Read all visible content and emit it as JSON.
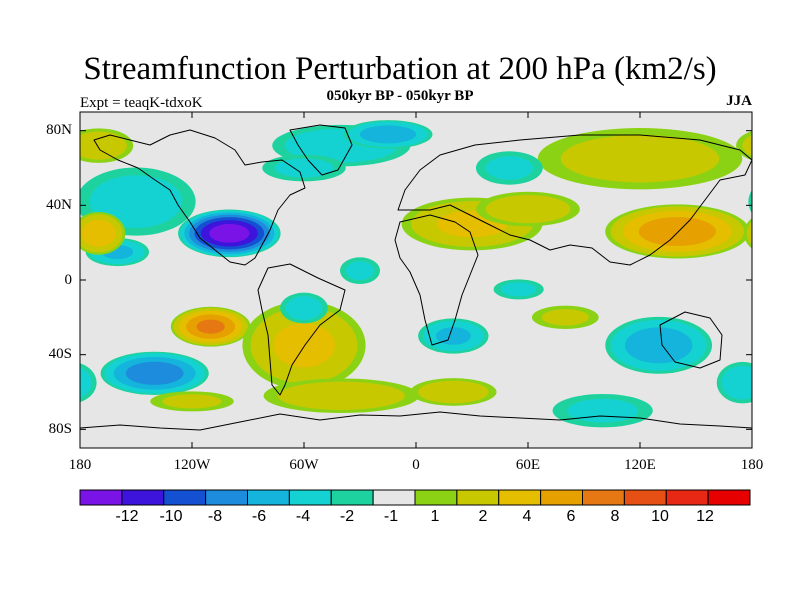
{
  "title": "Streamfunction Perturbation at 200 hPa (km2/s)",
  "subtitle": "050kyr BP - 050kyr BP",
  "left_label": "Expt = teaqK-tdxoK",
  "right_label": "JJA",
  "lat_labels": [
    "80N",
    "40N",
    "0",
    "40S",
    "80S"
  ],
  "lon_labels": [
    "180",
    "120W",
    "60W",
    "0",
    "60E",
    "120E",
    "180"
  ],
  "colorbar": {
    "colors": [
      "#7a14e6",
      "#3c14dc",
      "#1450d2",
      "#1e8cdc",
      "#14b4dc",
      "#14d2d2",
      "#1ed2a0",
      "#e6e6e6",
      "#8cd214",
      "#c8c800",
      "#e6be00",
      "#e6a000",
      "#e67814",
      "#e65014",
      "#e62814",
      "#e60000"
    ],
    "labels": [
      "-12",
      "-10",
      "-8",
      "-6",
      "-4",
      "-2",
      "-1",
      "1",
      "2",
      "4",
      "6",
      "8",
      "10",
      "12"
    ]
  },
  "fields": [
    {
      "lon": -100,
      "lat": 25,
      "rx": 28,
      "ry": 13,
      "v": -13
    },
    {
      "lon": -140,
      "lat": -50,
      "rx": 30,
      "ry": 12,
      "v": -7
    },
    {
      "lon": -160,
      "lat": 15,
      "rx": 18,
      "ry": 8,
      "v": -4
    },
    {
      "lon": -150,
      "lat": 42,
      "rx": 35,
      "ry": 20,
      "v": -2.5
    },
    {
      "lon": -40,
      "lat": 72,
      "rx": 40,
      "ry": 12,
      "v": -3
    },
    {
      "lon": -15,
      "lat": 78,
      "rx": 25,
      "ry": 8,
      "v": -5
    },
    {
      "lon": -110,
      "lat": -25,
      "rx": 22,
      "ry": 11,
      "v": 8
    },
    {
      "lon": -60,
      "lat": -35,
      "rx": 35,
      "ry": 25,
      "v": 4
    },
    {
      "lon": -40,
      "lat": -62,
      "rx": 45,
      "ry": 10,
      "v": 3
    },
    {
      "lon": 20,
      "lat": -60,
      "rx": 25,
      "ry": 8,
      "v": 3
    },
    {
      "lon": 30,
      "lat": 30,
      "rx": 40,
      "ry": 15,
      "v": 4
    },
    {
      "lon": 60,
      "lat": 38,
      "rx": 30,
      "ry": 10,
      "v": 3
    },
    {
      "lon": 140,
      "lat": 26,
      "rx": 40,
      "ry": 15,
      "v": 7
    },
    {
      "lon": -170,
      "lat": 25,
      "rx": 15,
      "ry": 12,
      "v": 5
    },
    {
      "lon": 120,
      "lat": 65,
      "rx": 60,
      "ry": 18,
      "v": 2.5
    },
    {
      "lon": -170,
      "lat": 72,
      "rx": 20,
      "ry": 10,
      "v": 3
    },
    {
      "lon": 80,
      "lat": -20,
      "rx": 20,
      "ry": 7,
      "v": 2
    },
    {
      "lon": -120,
      "lat": -65,
      "rx": 25,
      "ry": 6,
      "v": 2
    },
    {
      "lon": 130,
      "lat": -35,
      "rx": 30,
      "ry": 16,
      "v": -5
    },
    {
      "lon": 20,
      "lat": -30,
      "rx": 20,
      "ry": 10,
      "v": -4
    },
    {
      "lon": -60,
      "lat": -15,
      "rx": 14,
      "ry": 9,
      "v": -2.5
    },
    {
      "lon": -30,
      "lat": 5,
      "rx": 12,
      "ry": 8,
      "v": -2
    },
    {
      "lon": 55,
      "lat": -5,
      "rx": 15,
      "ry": 6,
      "v": -2
    },
    {
      "lon": 50,
      "lat": 60,
      "rx": 20,
      "ry": 10,
      "v": -2
    },
    {
      "lon": 100,
      "lat": -70,
      "rx": 30,
      "ry": 10,
      "v": -2
    },
    {
      "lon": 175,
      "lat": -55,
      "rx": 15,
      "ry": 12,
      "v": -3
    },
    {
      "lon": -60,
      "lat": 60,
      "rx": 25,
      "ry": 8,
      "v": -2
    }
  ]
}
